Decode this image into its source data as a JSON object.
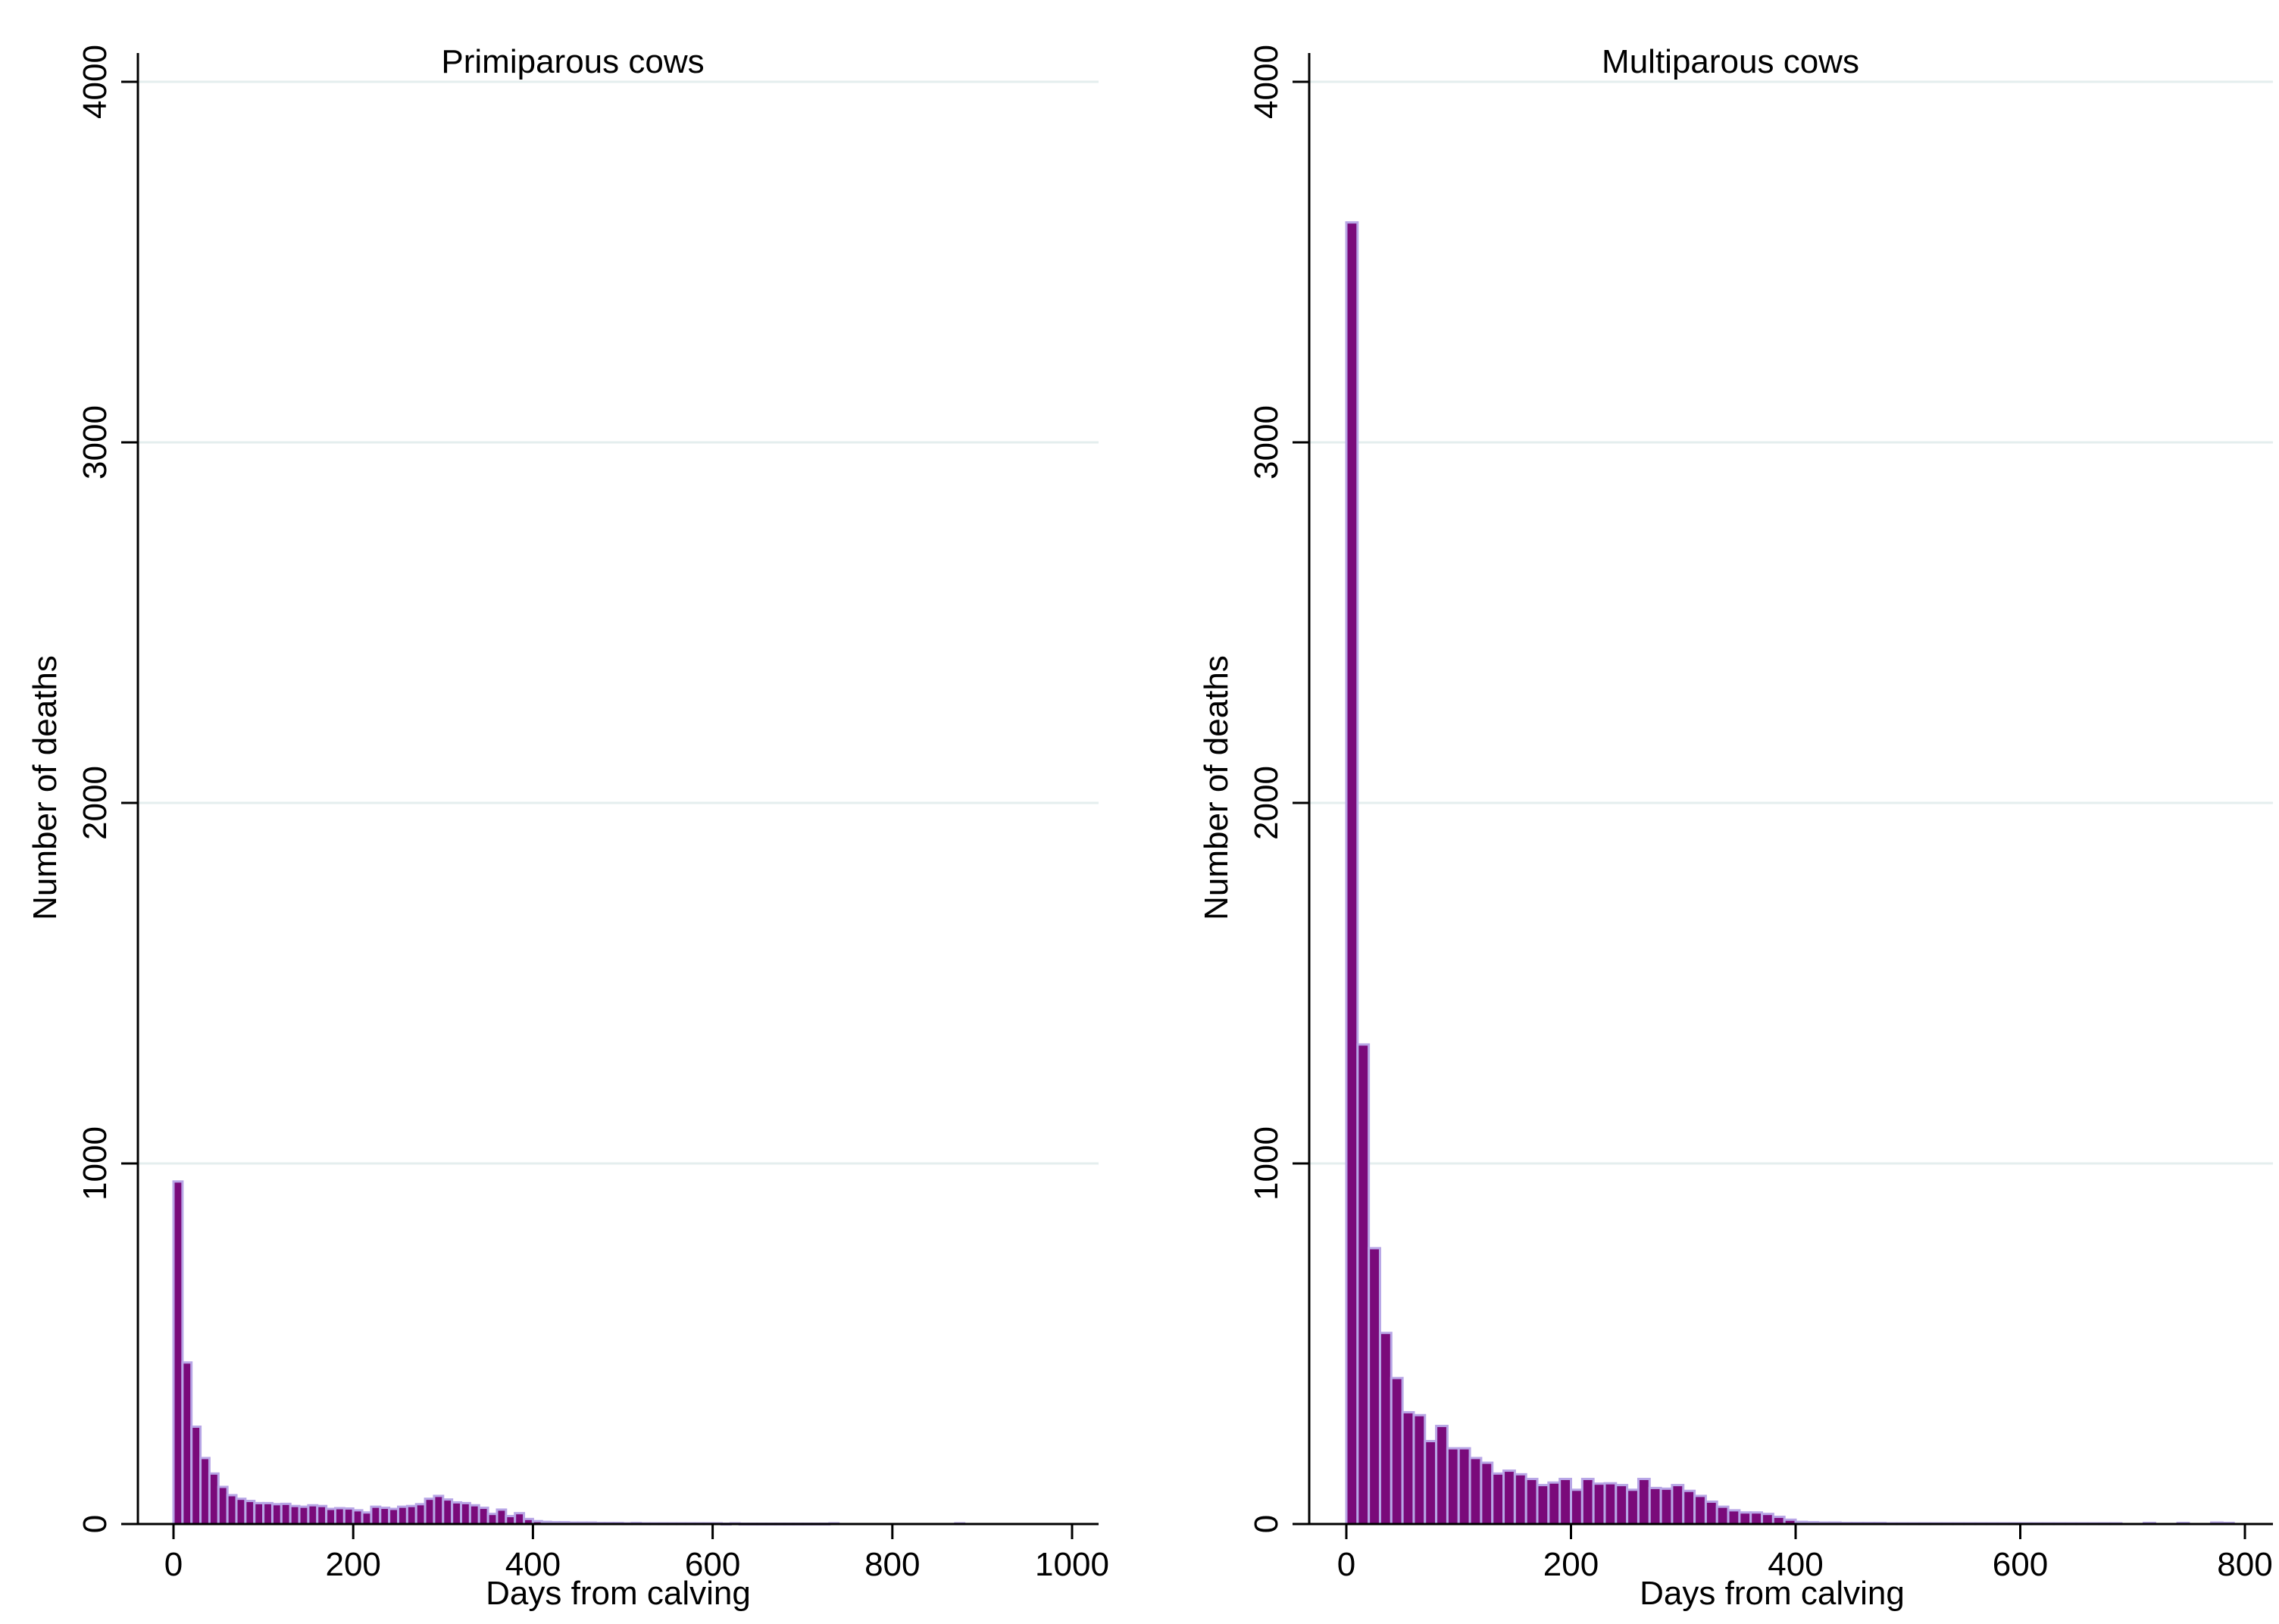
{
  "colors": {
    "bar_fill": "#7a0a7a",
    "bar_edge": "#b8a6e6",
    "gridline": "#e4eeee",
    "axis": "#000000"
  },
  "chart_data": [
    {
      "type": "bar",
      "title": "Primiparous cows",
      "xlabel": "Days from calving",
      "ylabel": "Number of deaths",
      "xlim": [
        -8,
        1012
      ],
      "ylim": [
        0,
        4000
      ],
      "xticks": [
        0,
        200,
        400,
        600,
        800,
        1000
      ],
      "yticks": [
        0,
        1000,
        2000,
        3000,
        4000
      ],
      "bin_width": 10,
      "grid": "horizontal",
      "bins": [
        {
          "x": 5,
          "y": 950
        },
        {
          "x": 15,
          "y": 448
        },
        {
          "x": 25,
          "y": 270
        },
        {
          "x": 35,
          "y": 183
        },
        {
          "x": 45,
          "y": 140
        },
        {
          "x": 55,
          "y": 103
        },
        {
          "x": 65,
          "y": 80
        },
        {
          "x": 75,
          "y": 70
        },
        {
          "x": 85,
          "y": 64
        },
        {
          "x": 95,
          "y": 58
        },
        {
          "x": 105,
          "y": 58
        },
        {
          "x": 115,
          "y": 55
        },
        {
          "x": 125,
          "y": 56
        },
        {
          "x": 135,
          "y": 50
        },
        {
          "x": 145,
          "y": 48
        },
        {
          "x": 155,
          "y": 52
        },
        {
          "x": 165,
          "y": 50
        },
        {
          "x": 175,
          "y": 42
        },
        {
          "x": 185,
          "y": 44
        },
        {
          "x": 195,
          "y": 43
        },
        {
          "x": 205,
          "y": 38
        },
        {
          "x": 215,
          "y": 32
        },
        {
          "x": 225,
          "y": 48
        },
        {
          "x": 235,
          "y": 45
        },
        {
          "x": 245,
          "y": 42
        },
        {
          "x": 255,
          "y": 48
        },
        {
          "x": 265,
          "y": 50
        },
        {
          "x": 275,
          "y": 55
        },
        {
          "x": 285,
          "y": 70
        },
        {
          "x": 295,
          "y": 78
        },
        {
          "x": 305,
          "y": 68
        },
        {
          "x": 315,
          "y": 60
        },
        {
          "x": 325,
          "y": 58
        },
        {
          "x": 335,
          "y": 52
        },
        {
          "x": 345,
          "y": 45
        },
        {
          "x": 355,
          "y": 28
        },
        {
          "x": 365,
          "y": 40
        },
        {
          "x": 375,
          "y": 22
        },
        {
          "x": 385,
          "y": 30
        },
        {
          "x": 395,
          "y": 14
        },
        {
          "x": 405,
          "y": 8
        },
        {
          "x": 415,
          "y": 6
        },
        {
          "x": 425,
          "y": 5
        },
        {
          "x": 435,
          "y": 5
        },
        {
          "x": 445,
          "y": 4
        },
        {
          "x": 455,
          "y": 4
        },
        {
          "x": 465,
          "y": 4
        },
        {
          "x": 475,
          "y": 3
        },
        {
          "x": 485,
          "y": 3
        },
        {
          "x": 495,
          "y": 3
        },
        {
          "x": 505,
          "y": 2
        },
        {
          "x": 515,
          "y": 3
        },
        {
          "x": 525,
          "y": 2
        },
        {
          "x": 535,
          "y": 2
        },
        {
          "x": 545,
          "y": 2
        },
        {
          "x": 555,
          "y": 2
        },
        {
          "x": 565,
          "y": 2
        },
        {
          "x": 575,
          "y": 2
        },
        {
          "x": 585,
          "y": 2
        },
        {
          "x": 595,
          "y": 2
        },
        {
          "x": 605,
          "y": 2
        },
        {
          "x": 615,
          "y": 1
        },
        {
          "x": 625,
          "y": 2
        },
        {
          "x": 635,
          "y": 1
        },
        {
          "x": 645,
          "y": 1
        },
        {
          "x": 655,
          "y": 1
        },
        {
          "x": 665,
          "y": 1
        },
        {
          "x": 675,
          "y": 1
        },
        {
          "x": 685,
          "y": 1
        },
        {
          "x": 695,
          "y": 1
        },
        {
          "x": 705,
          "y": 1
        },
        {
          "x": 715,
          "y": 1
        },
        {
          "x": 725,
          "y": 1
        },
        {
          "x": 735,
          "y": 2
        },
        {
          "x": 875,
          "y": 2
        }
      ]
    },
    {
      "type": "bar",
      "title": "Multiparous cows",
      "xlabel": "Days from calving",
      "ylabel": "Number of deaths",
      "xlim": [
        -8,
        812
      ],
      "ylim": [
        0,
        4000
      ],
      "xticks": [
        0,
        200,
        400,
        600,
        800
      ],
      "yticks": [
        0,
        1000,
        2000,
        3000,
        4000
      ],
      "bin_width": 10,
      "grid": "horizontal",
      "bins": [
        {
          "x": 5,
          "y": 3610
        },
        {
          "x": 15,
          "y": 1330
        },
        {
          "x": 25,
          "y": 765
        },
        {
          "x": 35,
          "y": 530
        },
        {
          "x": 45,
          "y": 405
        },
        {
          "x": 55,
          "y": 310
        },
        {
          "x": 65,
          "y": 302
        },
        {
          "x": 75,
          "y": 230
        },
        {
          "x": 85,
          "y": 272
        },
        {
          "x": 95,
          "y": 210
        },
        {
          "x": 105,
          "y": 210
        },
        {
          "x": 115,
          "y": 183
        },
        {
          "x": 125,
          "y": 170
        },
        {
          "x": 135,
          "y": 140
        },
        {
          "x": 145,
          "y": 148
        },
        {
          "x": 155,
          "y": 138
        },
        {
          "x": 165,
          "y": 125
        },
        {
          "x": 175,
          "y": 108
        },
        {
          "x": 185,
          "y": 115
        },
        {
          "x": 195,
          "y": 125
        },
        {
          "x": 205,
          "y": 95
        },
        {
          "x": 215,
          "y": 125
        },
        {
          "x": 225,
          "y": 112
        },
        {
          "x": 235,
          "y": 113
        },
        {
          "x": 245,
          "y": 108
        },
        {
          "x": 255,
          "y": 95
        },
        {
          "x": 265,
          "y": 125
        },
        {
          "x": 275,
          "y": 100
        },
        {
          "x": 285,
          "y": 98
        },
        {
          "x": 295,
          "y": 108
        },
        {
          "x": 305,
          "y": 92
        },
        {
          "x": 315,
          "y": 78
        },
        {
          "x": 325,
          "y": 62
        },
        {
          "x": 335,
          "y": 48
        },
        {
          "x": 345,
          "y": 38
        },
        {
          "x": 355,
          "y": 32
        },
        {
          "x": 365,
          "y": 32
        },
        {
          "x": 375,
          "y": 28
        },
        {
          "x": 385,
          "y": 20
        },
        {
          "x": 395,
          "y": 12
        },
        {
          "x": 405,
          "y": 6
        },
        {
          "x": 415,
          "y": 5
        },
        {
          "x": 425,
          "y": 4
        },
        {
          "x": 435,
          "y": 4
        },
        {
          "x": 445,
          "y": 3
        },
        {
          "x": 455,
          "y": 3
        },
        {
          "x": 465,
          "y": 3
        },
        {
          "x": 475,
          "y": 3
        },
        {
          "x": 485,
          "y": 2
        },
        {
          "x": 495,
          "y": 2
        },
        {
          "x": 505,
          "y": 2
        },
        {
          "x": 515,
          "y": 2
        },
        {
          "x": 525,
          "y": 2
        },
        {
          "x": 535,
          "y": 2
        },
        {
          "x": 545,
          "y": 2
        },
        {
          "x": 555,
          "y": 2
        },
        {
          "x": 565,
          "y": 2
        },
        {
          "x": 575,
          "y": 2
        },
        {
          "x": 585,
          "y": 2
        },
        {
          "x": 595,
          "y": 2
        },
        {
          "x": 605,
          "y": 2
        },
        {
          "x": 615,
          "y": 2
        },
        {
          "x": 625,
          "y": 2
        },
        {
          "x": 635,
          "y": 2
        },
        {
          "x": 645,
          "y": 2
        },
        {
          "x": 655,
          "y": 2
        },
        {
          "x": 665,
          "y": 2
        },
        {
          "x": 675,
          "y": 2
        },
        {
          "x": 685,
          "y": 2
        },
        {
          "x": 715,
          "y": 3
        },
        {
          "x": 745,
          "y": 3
        },
        {
          "x": 775,
          "y": 4
        },
        {
          "x": 785,
          "y": 3
        }
      ]
    }
  ]
}
